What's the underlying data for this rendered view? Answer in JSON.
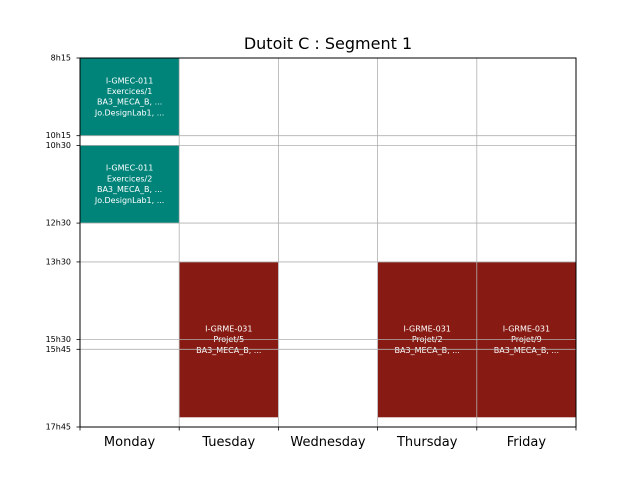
{
  "chart_data": {
    "type": "timetable",
    "title": "Dutoit C : Segment 1",
    "days": [
      "Monday",
      "Tuesday",
      "Wednesday",
      "Thursday",
      "Friday"
    ],
    "time_ticks": [
      "8h15",
      "10h15",
      "10h30",
      "12h30",
      "13h30",
      "15h30",
      "15h45",
      "17h45"
    ],
    "ylim": [
      "8h15",
      "17h45"
    ],
    "grid": true,
    "events": [
      {
        "day": "Monday",
        "start": "8h15",
        "end": "10h15",
        "color": "#00847a",
        "lines": [
          "I-GMEC-011",
          "Exercices/1",
          "BA3_MECA_B, ...",
          "Jo.DesignLab1, ..."
        ]
      },
      {
        "day": "Monday",
        "start": "10h30",
        "end": "12h30",
        "color": "#00847a",
        "lines": [
          "I-GMEC-011",
          "Exercices/2",
          "BA3_MECA_B, ...",
          "Jo.DesignLab1, ..."
        ]
      },
      {
        "day": "Tuesday",
        "start": "13h30",
        "end": "17h30",
        "color": "#871a12",
        "lines": [
          "I-GRME-031",
          "Projet/5",
          "BA3_MECA_B, ..."
        ]
      },
      {
        "day": "Thursday",
        "start": "13h30",
        "end": "17h30",
        "color": "#871a12",
        "lines": [
          "I-GRME-031",
          "Projet/2",
          "BA3_MECA_B, ..."
        ]
      },
      {
        "day": "Friday",
        "start": "13h30",
        "end": "17h30",
        "color": "#871a12",
        "lines": [
          "I-GRME-031",
          "Projet/9",
          "BA3_MECA_B, ..."
        ]
      }
    ]
  }
}
